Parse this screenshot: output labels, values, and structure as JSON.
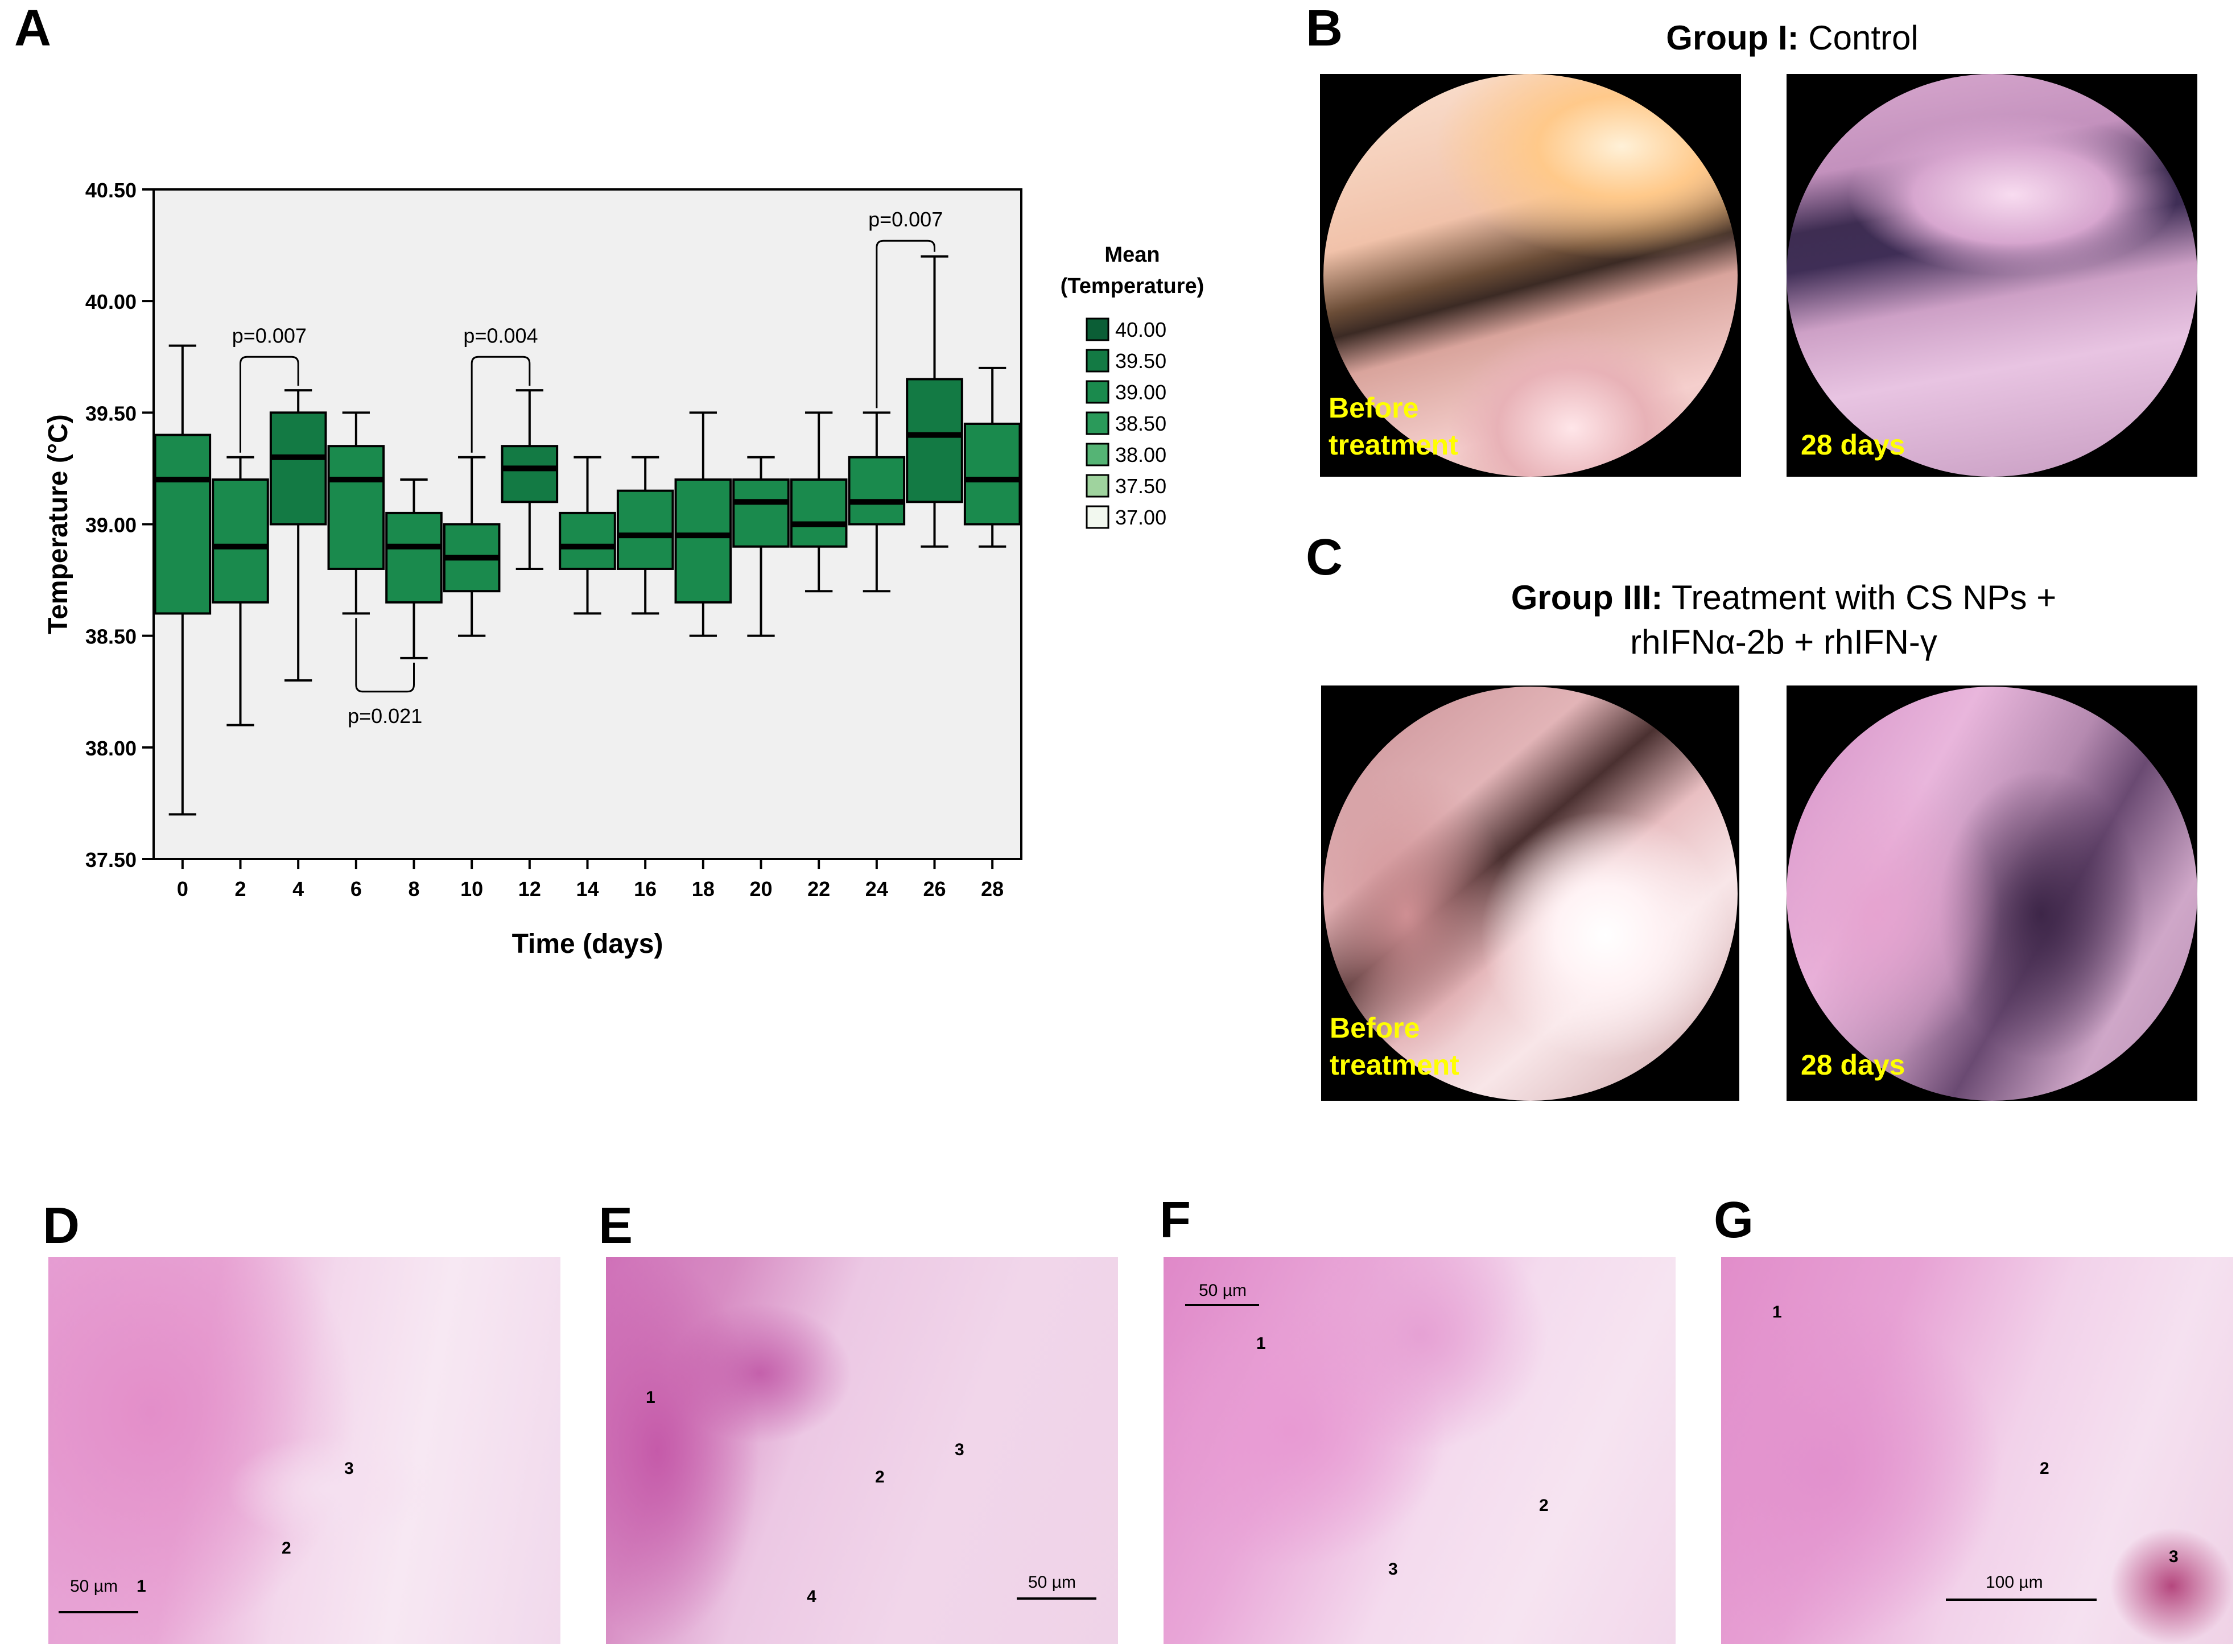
{
  "panels": {
    "a": "A",
    "b": "B",
    "c": "C",
    "d": "D",
    "e": "E",
    "f": "F",
    "g": "G"
  },
  "chart_data": {
    "type": "box",
    "xlabel": "Time (days)",
    "ylabel": "Temperature (°C)",
    "ylim": [
      37.5,
      40.5
    ],
    "y_ticks": [
      "37.50",
      "38.00",
      "38.50",
      "39.00",
      "39.50",
      "40.00",
      "40.50"
    ],
    "categories": [
      "0",
      "2",
      "4",
      "6",
      "8",
      "10",
      "12",
      "14",
      "16",
      "18",
      "20",
      "22",
      "24",
      "26",
      "28"
    ],
    "boxes": [
      {
        "day": "0",
        "min": 37.7,
        "q1": 38.6,
        "median": 39.2,
        "q3": 39.4,
        "max": 39.8,
        "mean": 39.0
      },
      {
        "day": "2",
        "min": 38.1,
        "q1": 38.65,
        "median": 38.9,
        "q3": 39.2,
        "max": 39.3,
        "mean": 38.9
      },
      {
        "day": "4",
        "min": 38.3,
        "q1": 39.0,
        "median": 39.3,
        "q3": 39.5,
        "max": 39.6,
        "mean": 39.3
      },
      {
        "day": "6",
        "min": 38.6,
        "q1": 38.8,
        "median": 39.2,
        "q3": 39.35,
        "max": 39.5,
        "mean": 39.1
      },
      {
        "day": "8",
        "min": 38.4,
        "q1": 38.65,
        "median": 38.9,
        "q3": 39.05,
        "max": 39.2,
        "mean": 38.9
      },
      {
        "day": "10",
        "min": 38.5,
        "q1": 38.7,
        "median": 38.85,
        "q3": 39.0,
        "max": 39.3,
        "mean": 38.9
      },
      {
        "day": "12",
        "min": 38.8,
        "q1": 39.1,
        "median": 39.25,
        "q3": 39.35,
        "max": 39.6,
        "mean": 39.3
      },
      {
        "day": "14",
        "min": 38.6,
        "q1": 38.8,
        "median": 38.9,
        "q3": 39.05,
        "max": 39.3,
        "mean": 38.9
      },
      {
        "day": "16",
        "min": 38.6,
        "q1": 38.8,
        "median": 38.95,
        "q3": 39.15,
        "max": 39.3,
        "mean": 39.0
      },
      {
        "day": "18",
        "min": 38.5,
        "q1": 38.65,
        "median": 38.95,
        "q3": 39.2,
        "max": 39.5,
        "mean": 39.0
      },
      {
        "day": "20",
        "min": 38.5,
        "q1": 38.9,
        "median": 39.1,
        "q3": 39.2,
        "max": 39.3,
        "mean": 39.1
      },
      {
        "day": "22",
        "min": 38.7,
        "q1": 38.9,
        "median": 39.0,
        "q3": 39.2,
        "max": 39.5,
        "mean": 39.0
      },
      {
        "day": "24",
        "min": 38.7,
        "q1": 39.0,
        "median": 39.1,
        "q3": 39.3,
        "max": 39.5,
        "mean": 39.1
      },
      {
        "day": "26",
        "min": 38.9,
        "q1": 39.1,
        "median": 39.4,
        "q3": 39.65,
        "max": 40.2,
        "mean": 39.5
      },
      {
        "day": "28",
        "min": 38.9,
        "q1": 39.0,
        "median": 39.2,
        "q3": 39.45,
        "max": 39.7,
        "mean": 39.2
      }
    ],
    "annotations": [
      {
        "text": "p=0.007",
        "from": "2",
        "to": "4",
        "bracket_y": 39.75,
        "side": "top"
      },
      {
        "text": "p=0.021",
        "from": "6",
        "to": "8",
        "bracket_y": 38.25,
        "side": "bottom"
      },
      {
        "text": "p=0.004",
        "from": "10",
        "to": "12",
        "bracket_y": 39.75,
        "side": "top"
      },
      {
        "text": "p=0.007",
        "from": "24",
        "to": "26",
        "bracket_y": 40.27,
        "side": "top"
      }
    ],
    "legend": {
      "title_line1": "Mean",
      "title_line2": "(Temperature)",
      "placement": "right",
      "entries": [
        {
          "label": "40.00",
          "color": "#0b5e36"
        },
        {
          "label": "39.50",
          "color": "#137a44"
        },
        {
          "label": "39.00",
          "color": "#1a8a4d"
        },
        {
          "label": "38.50",
          "color": "#2a9a5a"
        },
        {
          "label": "38.00",
          "color": "#55b475"
        },
        {
          "label": "37.50",
          "color": "#9fd39e"
        },
        {
          "label": "37.00",
          "color": "#f2f8ef"
        }
      ]
    },
    "plot_bg": "#f0f0f0"
  },
  "group_b": {
    "title_bold": "Group I:",
    "title_rest": " Control",
    "before_line1": "Before",
    "before_line2": "treatment",
    "after": "28 days"
  },
  "group_c": {
    "title_bold": "Group III:",
    "title_rest": " Treatment with CS NPs +",
    "title_line2": "rhIFNα-2b + rhIFN-γ",
    "before_line1": "Before",
    "before_line2": "treatment",
    "after": "28 days"
  },
  "histology": {
    "d": {
      "scale": "50 µm",
      "n1": "1",
      "n2": "2",
      "n3": "3"
    },
    "e": {
      "scale": "50 µm",
      "n1": "1",
      "n2": "2",
      "n3": "3",
      "n4": "4"
    },
    "f": {
      "scale": "50 µm",
      "n1": "1",
      "n2": "2",
      "n3": "3"
    },
    "g": {
      "scale": "100 µm",
      "n1": "1",
      "n2": "2",
      "n3": "3"
    }
  },
  "colors": {
    "label_yellow": "#ffff00",
    "he_pink": "#e79ad0",
    "he_purple": "#b3509f"
  }
}
